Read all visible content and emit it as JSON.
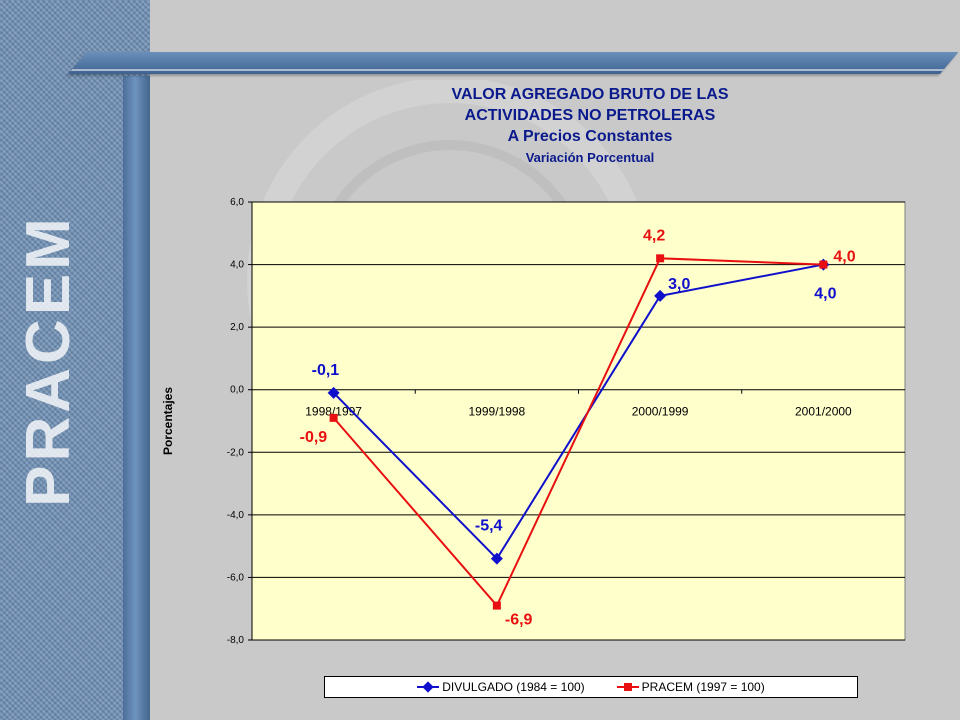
{
  "brand": "PRACEM",
  "chart_data": {
    "type": "line",
    "title": "VALOR AGREGADO BRUTO DE LAS ACTIVIDADES NO PETROLERAS",
    "title_lines": [
      "VALOR AGREGADO BRUTO DE LAS",
      "ACTIVIDADES NO PETROLERAS",
      "A Precios Constantes"
    ],
    "subtitle": "Variación Porcentual",
    "xlabel": "",
    "ylabel": "Porcentajes",
    "categories": [
      "1998/1997",
      "1999/1998",
      "2000/1999",
      "2001/2000"
    ],
    "ylim": [
      -8,
      6
    ],
    "yticks": [
      "6,0",
      "4,0",
      "2,0",
      "0,0",
      "-2,0",
      "-4,0",
      "-6,0",
      "-8,0"
    ],
    "ytick_values": [
      6,
      4,
      2,
      0,
      -2,
      -4,
      -6,
      -8
    ],
    "grid": true,
    "legend_position": "bottom",
    "series": [
      {
        "name": "DIVULGADO (1984 = 100)",
        "values": [
          -0.1,
          -5.4,
          3.0,
          4.0
        ],
        "labels": [
          "-0,1",
          "-5,4",
          "3,0",
          "4,0"
        ],
        "color": "#1010cc",
        "marker": "diamond"
      },
      {
        "name": "PRACEM (1997 = 100)",
        "values": [
          -0.9,
          -6.9,
          4.2,
          4.0
        ],
        "labels": [
          "-0,9",
          "-6,9",
          "4,2",
          "4,0"
        ],
        "color": "#e81010",
        "marker": "square"
      }
    ],
    "plot_background": "#ffffcc"
  }
}
